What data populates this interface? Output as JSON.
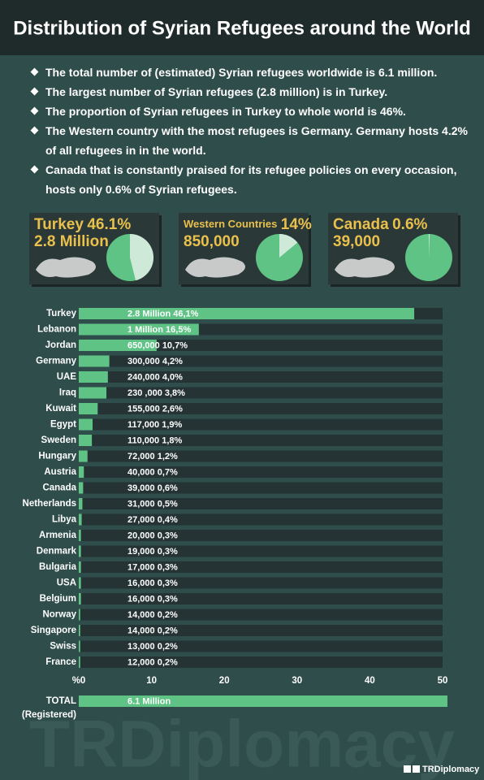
{
  "header": {
    "title": "Distribution of Syrian Refugees around the World"
  },
  "bullets": [
    "The total number of (estimated) Syrian refugees worldwide is 6.1 million.",
    "The largest number of Syrian refugees (2.8 million) is in Turkey.",
    "The proportion of Syrian refugees in Turkey to whole world is 46%.",
    "The Western country with the most refugees is Germany. Germany hosts 4.2% of all refugees in in the world.",
    "Canada that is constantly praised for its refugee policies on every occasion, hosts only 0.6% of Syrian refugees."
  ],
  "cards": [
    {
      "name": "Turkey",
      "share": 46.1,
      "share_label": "46.1%",
      "amount": "2.8 Million"
    },
    {
      "name": "Western Countries",
      "share": 14,
      "share_label": "14%",
      "amount": "850,000"
    },
    {
      "name": "Canada",
      "share": 0.6,
      "share_label": "0.6%",
      "amount": "39,000"
    }
  ],
  "chart_data": {
    "type": "bar",
    "orientation": "horizontal",
    "color": "#5ec384",
    "categories": [
      "Turkey",
      "Lebanon",
      "Jordan",
      "Germany",
      "UAE",
      "Iraq",
      "Kuwait",
      "Egypt",
      "Sweden",
      "Hungary",
      "Austria",
      "Canada",
      "Netherlands",
      "Libya",
      "Armenia",
      "Denmark",
      "Bulgaria",
      "USA",
      "Belgium",
      "Norway",
      "Singapore",
      "Swiss",
      "France"
    ],
    "values": [
      46.1,
      16.5,
      10.7,
      4.2,
      4.0,
      3.8,
      2.6,
      1.9,
      1.8,
      1.2,
      0.7,
      0.6,
      0.5,
      0.4,
      0.3,
      0.3,
      0.3,
      0.3,
      0.3,
      0.2,
      0.2,
      0.2,
      0.2
    ],
    "value_labels": [
      "2.8 Million 46,1%",
      "1 Million 16,5%",
      "650,000 10,7%",
      "300,000 4,2%",
      "240,000 4,0%",
      "230 ,000 3,8%",
      "155,000 2,6%",
      "117,000 1,9%",
      "110,000 1,8%",
      "72,000 1,2%",
      "40,000 0,7%",
      "39,000 0,6%",
      "31,000 0,5%",
      "27,000 0,4%",
      "20,000 0,3%",
      "19,000 0,3%",
      "17,000 0,3%",
      "16,000 0,3%",
      "16,000 0,3%",
      "14,000 0,2%",
      "14,000 0,2%",
      "13,000 0,2%",
      "12,000 0,2%"
    ],
    "xlim": [
      0,
      50
    ],
    "xticks": [
      {
        "value": 0,
        "label": "%0"
      },
      10,
      20,
      30,
      40,
      50
    ],
    "total": {
      "label": "TOTAL",
      "sublabel": "(Registered)",
      "value_label": "6.1 Million"
    }
  },
  "footer": {
    "watermark": "TRDiplomacy",
    "handle": "TRDiplomacy"
  }
}
